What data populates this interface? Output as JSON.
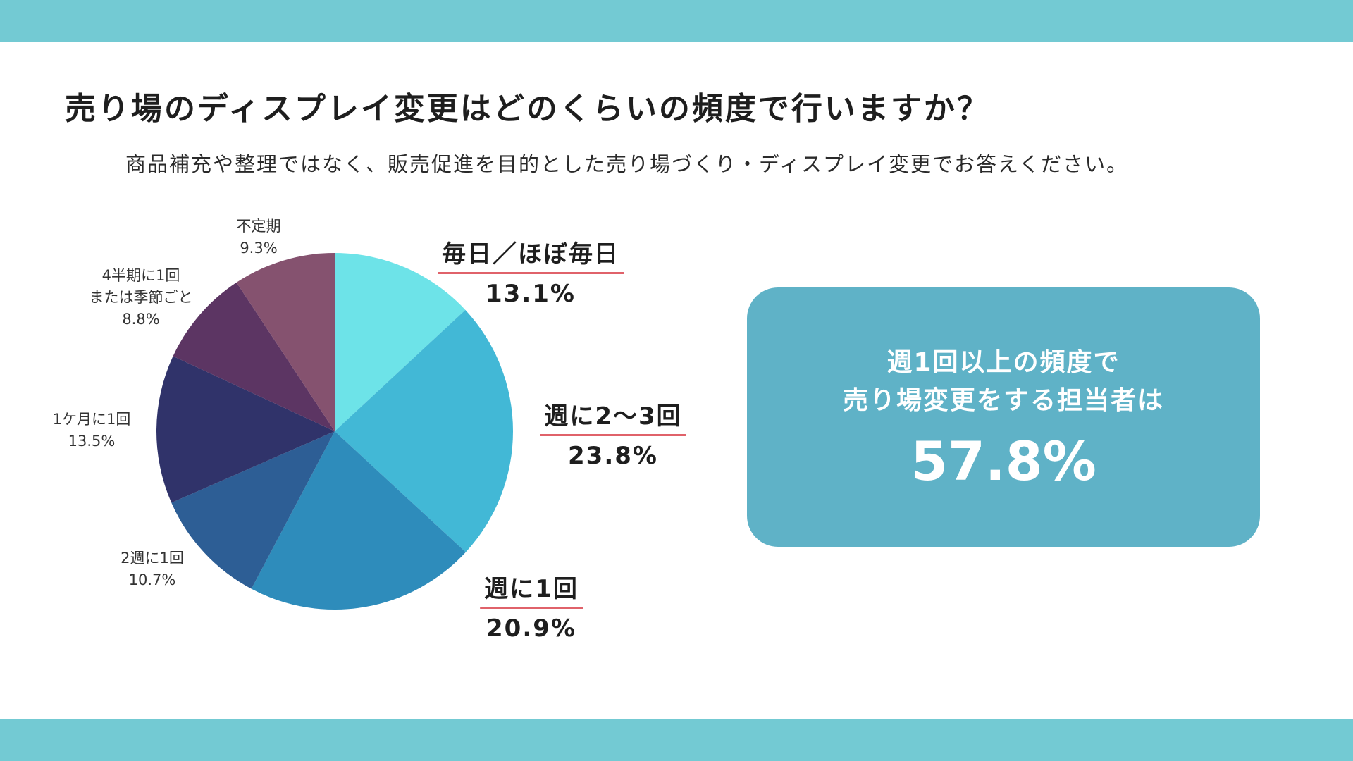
{
  "title": "売り場のディスプレイ変更はどのくらいの頻度で行いますか？",
  "subtitle": "商品補充や整理ではなく、販売促進を目的とした売り場づくり・ディスプレイ変更でお答えください。",
  "callout": {
    "line1": "週1回以上の頻度で",
    "line2": "売り場変更をする担当者は",
    "value": "57.8%"
  },
  "labels": {
    "daily": {
      "name": "毎日／ほぼ毎日",
      "pct": "13.1%"
    },
    "twice_weekly": {
      "name": "週に2〜3回",
      "pct": "23.8%"
    },
    "weekly": {
      "name": "週に1回",
      "pct": "20.9%"
    },
    "biweekly": {
      "line1": "2週に1回",
      "pct": "10.7%"
    },
    "monthly": {
      "line1": "1ケ月に1回",
      "pct": "13.5%"
    },
    "quarterly": {
      "line1": "4半期に1回",
      "line2": "または季節ごと",
      "pct": "8.8%"
    },
    "irregular": {
      "line1": "不定期",
      "pct": "9.3%"
    }
  },
  "chart_data": {
    "type": "pie",
    "categories": [
      "毎日／ほぼ毎日",
      "週に2〜3回",
      "週に1回",
      "2週に1回",
      "1ケ月に1回",
      "4半期に1回または季節ごと",
      "不定期"
    ],
    "values": [
      13.1,
      23.8,
      20.9,
      10.7,
      13.5,
      8.8,
      9.3
    ],
    "colors": [
      "#6de3e8",
      "#42b8d6",
      "#2e8cbb",
      "#2d5e95",
      "#30336a",
      "#5c3563",
      "#85526f"
    ],
    "start": "12 o'clock",
    "direction": "clockwise"
  }
}
